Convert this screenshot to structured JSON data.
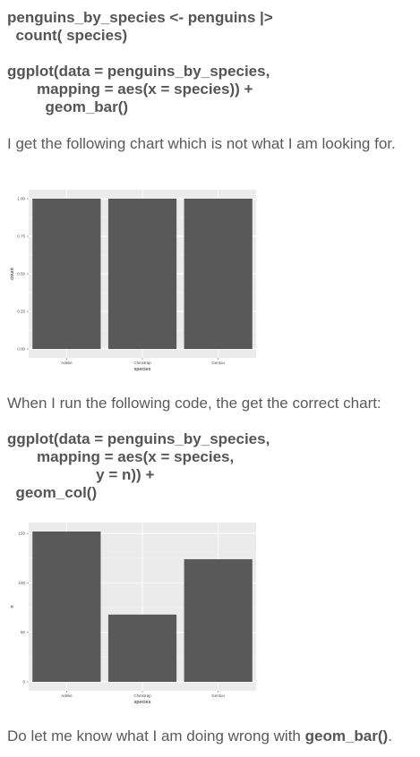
{
  "code1": {
    "lines": [
      "penguins_by_species <- penguins |>",
      "  count( species)",
      "",
      "ggplot(data = penguins_by_species,",
      "       mapping = aes(x = species)) +",
      "         geom_bar()"
    ]
  },
  "text1": "I get the following chart which is not what I am looking for.",
  "text2": "When I run the following code, the get the correct chart:",
  "code2": {
    "lines": [
      "ggplot(data = penguins_by_species,",
      "       mapping = aes(x = species,",
      "                     y = n)) +",
      "  geom_col()"
    ]
  },
  "text3": {
    "prefix": "Do let me know what I am doing wrong with ",
    "bold": "geom_bar()",
    "suffix": "."
  },
  "colors": {
    "panel_bg": "#EBEBEB",
    "grid_major": "#FFFFFF",
    "bar_fill": "#595959",
    "text": "#555555"
  },
  "chart_data": [
    {
      "type": "bar",
      "categories": [
        "Adelie",
        "Chinstrap",
        "Gentoo"
      ],
      "values": [
        1,
        1,
        1
      ],
      "xlabel": "species",
      "ylabel": "count",
      "ylim": [
        0,
        1
      ],
      "yticks": [
        "0.00",
        "0.25",
        "0.50",
        "0.75",
        "1.00"
      ],
      "ytick_values": [
        0,
        0.25,
        0.5,
        0.75,
        1
      ],
      "grid": true
    },
    {
      "type": "bar",
      "categories": [
        "Adelie",
        "Chinstrap",
        "Gentoo"
      ],
      "values": [
        152,
        68,
        124
      ],
      "xlabel": "species",
      "ylabel": "n",
      "ylim": [
        0,
        152
      ],
      "yticks": [
        "0",
        "50",
        "100",
        "150"
      ],
      "ytick_values": [
        0,
        50,
        100,
        150
      ],
      "grid": true
    }
  ]
}
